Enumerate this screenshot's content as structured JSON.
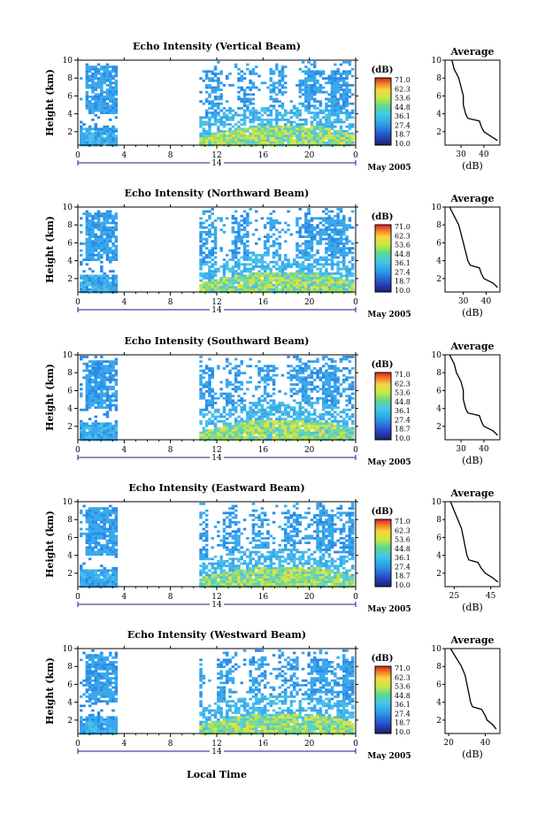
{
  "figure": {
    "x_axis_label": "Local Time",
    "date_label": "May 2005",
    "day_label": "14",
    "colorbar_unit": "(dB)",
    "colorbar_ticks": [
      "71.0",
      "62.3",
      "53.6",
      "44.8",
      "36.1",
      "27.4",
      "18.7",
      "10.0"
    ],
    "colors": {
      "low": "#1c2a8c",
      "mid_low": "#2a7ee0",
      "mid": "#3fb0ee",
      "mid_high": "#a8e040",
      "high": "#f5e040",
      "max": "#e02020"
    }
  },
  "chart_data": [
    {
      "type": "heatmap",
      "title": "Echo Intensity (Vertical Beam)",
      "ylabel": "Height (km)",
      "x_ticks": [
        "0",
        "4",
        "8",
        "12",
        "16",
        "20",
        "0"
      ],
      "y_ticks": [
        "2",
        "4",
        "6",
        "8",
        "10"
      ],
      "xlim": [
        0,
        24
      ],
      "ylim": [
        0.5,
        10
      ],
      "profile": {
        "title": "Average",
        "xlabel": "(dB)",
        "x_ticks": [
          "30",
          "40"
        ],
        "xlim": [
          23,
          47
        ],
        "points": [
          [
            26,
            10
          ],
          [
            27,
            9
          ],
          [
            29,
            8
          ],
          [
            30,
            7
          ],
          [
            31,
            6
          ],
          [
            31,
            5
          ],
          [
            32,
            4
          ],
          [
            33,
            3.5
          ],
          [
            38,
            3.2
          ],
          [
            39,
            2.5
          ],
          [
            40,
            2.0
          ],
          [
            43,
            1.5
          ],
          [
            46,
            1.0
          ]
        ]
      }
    },
    {
      "type": "heatmap",
      "title": "Echo Intensity (Northward Beam)",
      "ylabel": "Height (km)",
      "x_ticks": [
        "0",
        "4",
        "8",
        "12",
        "16",
        "20",
        "0"
      ],
      "y_ticks": [
        "2",
        "4",
        "6",
        "8",
        "10"
      ],
      "xlim": [
        0,
        24
      ],
      "ylim": [
        0.5,
        10
      ],
      "profile": {
        "title": "Average",
        "xlabel": "(dB)",
        "x_ticks": [
          "30",
          "40"
        ],
        "xlim": [
          22,
          46
        ],
        "points": [
          [
            24,
            10
          ],
          [
            26,
            9
          ],
          [
            28,
            8
          ],
          [
            29,
            7
          ],
          [
            30,
            6
          ],
          [
            31,
            5
          ],
          [
            32,
            4
          ],
          [
            33,
            3.5
          ],
          [
            37,
            3.2
          ],
          [
            38,
            2.5
          ],
          [
            39,
            2.0
          ],
          [
            43,
            1.5
          ],
          [
            45,
            1.0
          ]
        ]
      }
    },
    {
      "type": "heatmap",
      "title": "Echo Intensity (Southward Beam)",
      "ylabel": "Height (km)",
      "x_ticks": [
        "0",
        "4",
        "8",
        "12",
        "16",
        "20",
        "0"
      ],
      "y_ticks": [
        "2",
        "4",
        "6",
        "8",
        "10"
      ],
      "xlim": [
        0,
        24
      ],
      "ylim": [
        0.5,
        10
      ],
      "profile": {
        "title": "Average",
        "xlabel": "(dB)",
        "x_ticks": [
          "30",
          "40"
        ],
        "xlim": [
          23,
          47
        ],
        "points": [
          [
            25,
            10
          ],
          [
            27,
            9
          ],
          [
            28,
            8
          ],
          [
            30,
            7
          ],
          [
            31,
            6
          ],
          [
            31,
            5
          ],
          [
            32,
            4
          ],
          [
            33,
            3.5
          ],
          [
            38,
            3.2
          ],
          [
            39,
            2.5
          ],
          [
            40,
            2.0
          ],
          [
            44,
            1.5
          ],
          [
            46,
            1.0
          ]
        ]
      }
    },
    {
      "type": "heatmap",
      "title": "Echo Intensity (Eastward Beam)",
      "ylabel": "Height (km)",
      "x_ticks": [
        "0",
        "4",
        "8",
        "12",
        "16",
        "20",
        "0"
      ],
      "y_ticks": [
        "2",
        "4",
        "6",
        "8",
        "10"
      ],
      "xlim": [
        0,
        24
      ],
      "ylim": [
        0.5,
        10
      ],
      "profile": {
        "title": "Average",
        "xlabel": "(dB)",
        "x_ticks": [
          "25",
          "45"
        ],
        "xlim": [
          20,
          50
        ],
        "points": [
          [
            23,
            10
          ],
          [
            25,
            9
          ],
          [
            27,
            8
          ],
          [
            29,
            7
          ],
          [
            30,
            6
          ],
          [
            31,
            5
          ],
          [
            32,
            4
          ],
          [
            33,
            3.5
          ],
          [
            38,
            3.2
          ],
          [
            40,
            2.5
          ],
          [
            42,
            2.0
          ],
          [
            46,
            1.5
          ],
          [
            49,
            1.0
          ]
        ]
      }
    },
    {
      "type": "heatmap",
      "title": "Echo Intensity (Westward Beam)",
      "ylabel": "Height (km)",
      "x_ticks": [
        "0",
        "4",
        "8",
        "12",
        "16",
        "20",
        "0"
      ],
      "y_ticks": [
        "2",
        "4",
        "6",
        "8",
        "10"
      ],
      "xlim": [
        0,
        24
      ],
      "ylim": [
        0.5,
        10
      ],
      "profile": {
        "title": "Average",
        "xlabel": "(dB)",
        "x_ticks": [
          "20",
          "40"
        ],
        "xlim": [
          18,
          48
        ],
        "points": [
          [
            21,
            10
          ],
          [
            24,
            9
          ],
          [
            27,
            8
          ],
          [
            29,
            7
          ],
          [
            30,
            6
          ],
          [
            31,
            5
          ],
          [
            32,
            4
          ],
          [
            33,
            3.5
          ],
          [
            38,
            3.2
          ],
          [
            40,
            2.5
          ],
          [
            41,
            2.0
          ],
          [
            44,
            1.5
          ],
          [
            46,
            1.0
          ]
        ]
      }
    }
  ]
}
